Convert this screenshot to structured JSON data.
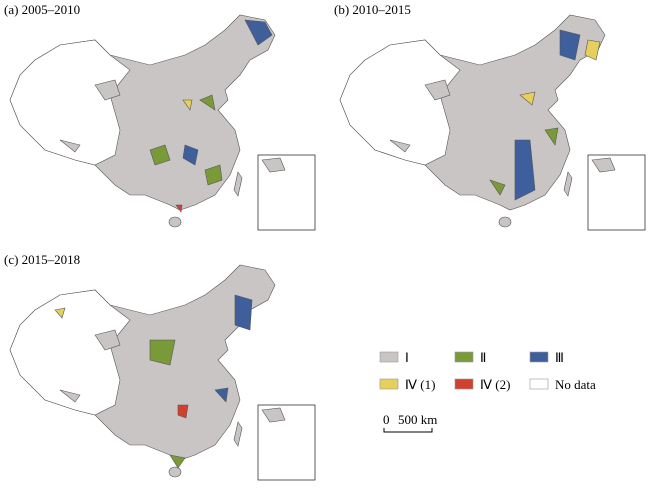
{
  "panels": [
    {
      "title": "(a) 2005–2010"
    },
    {
      "title": "(b) 2010–2015"
    },
    {
      "title": "(c) 2015–2018"
    }
  ],
  "legend": [
    {
      "label": "Ⅰ",
      "color": "#c9c5c5"
    },
    {
      "label": "Ⅱ",
      "color": "#7a9a3a"
    },
    {
      "label": "Ⅲ",
      "color": "#3e5f9c"
    },
    {
      "label": "Ⅳ (1)",
      "color": "#e6cf5a"
    },
    {
      "label": "Ⅳ (2)",
      "color": "#d2402f"
    },
    {
      "label": "No data",
      "color": "#ffffff"
    }
  ],
  "scale_bar": {
    "start": "0",
    "end": "500 km"
  }
}
